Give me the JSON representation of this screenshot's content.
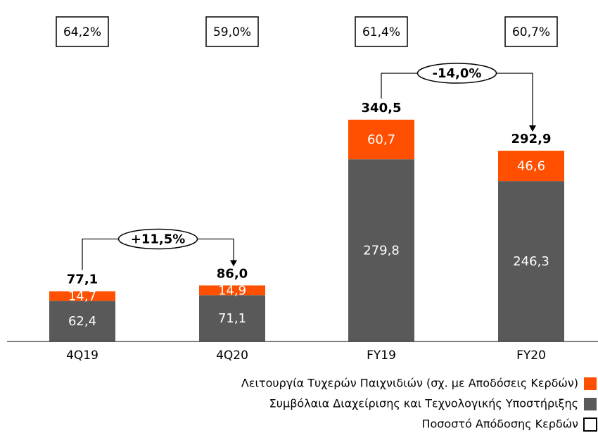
{
  "chart_data": {
    "type": "bar",
    "stacked": true,
    "categories": [
      "4Q19",
      "4Q20",
      "FY19",
      "FY20"
    ],
    "ylim": [
      0,
      400
    ],
    "series": [
      {
        "name": "Συμβόλαια Διαχείρισης και Τεχνολογικής Υποστήριξης",
        "color": "#595959",
        "values": [
          62.4,
          71.1,
          279.8,
          246.3
        ],
        "value_labels": [
          "62,4",
          "71,1",
          "279,8",
          "246,3"
        ]
      },
      {
        "name": "Λειτουργία Τυχερών Παιχνιδιών (σχ. με Αποδόσεις Κερδών)",
        "color": "#fe5000",
        "values": [
          14.7,
          14.9,
          60.7,
          46.6
        ],
        "value_labels": [
          "14,7",
          "14,9",
          "60,7",
          "46,6"
        ]
      }
    ],
    "totals": {
      "values": [
        77.1,
        86.0,
        340.5,
        292.9
      ],
      "value_labels": [
        "77,1",
        "86,0",
        "340,5",
        "292,9"
      ]
    },
    "ratio": {
      "name": "Ποσοστό Απόδοσης Κερδών",
      "color": "#ffffff",
      "values": [
        64.2,
        59.0,
        61.4,
        60.7
      ],
      "value_labels": [
        "64,2%",
        "59,0%",
        "61,4%",
        "60,7%"
      ]
    },
    "annotations": [
      {
        "from": 0,
        "to": 1,
        "text": "+11,5%"
      },
      {
        "from": 2,
        "to": 3,
        "text": "-14,0%"
      }
    ]
  }
}
